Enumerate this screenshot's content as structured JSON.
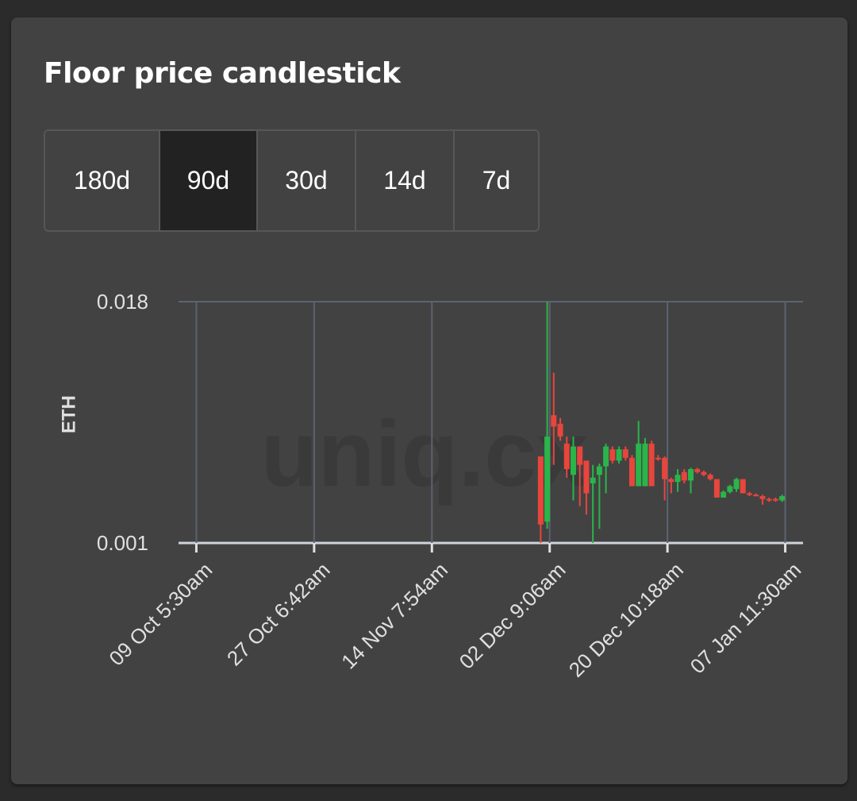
{
  "header": {
    "title": "Floor price candlestick"
  },
  "tabs": [
    "180d",
    "90d",
    "30d",
    "14d",
    "7d"
  ],
  "selected_tab": 1,
  "chart_data": {
    "type": "candlestick",
    "watermark": "uniq.cx",
    "y_label": "ETH",
    "ylim": [
      0.001,
      0.018
    ],
    "yticks": [
      0.001,
      0.018
    ],
    "xlim": [
      "06 Oct 12:00pm",
      "10 Jan 5:00am"
    ],
    "xticks": [
      "09 Oct 5:30am",
      "27 Oct 6:42am",
      "14 Nov 7:54am",
      "02 Dec 9:06am",
      "20 Dec 10:18am",
      "07 Jan 11:30am"
    ],
    "grid": true,
    "up_color": "#2bb44a",
    "down_color": "#e8453c",
    "x": [
      "01 Dec",
      "02 Dec",
      "03 Dec",
      "04 Dec",
      "05 Dec",
      "06 Dec",
      "07 Dec",
      "08 Dec",
      "09 Dec",
      "10 Dec",
      "11 Dec",
      "12 Dec",
      "13 Dec",
      "14 Dec",
      "15 Dec",
      "16 Dec",
      "17 Dec",
      "18 Dec",
      "19 Dec",
      "20 Dec",
      "21 Dec",
      "22 Dec",
      "23 Dec",
      "24 Dec",
      "25 Dec",
      "26 Dec",
      "27 Dec",
      "28 Dec",
      "29 Dec",
      "30 Dec",
      "31 Dec",
      "01 Jan",
      "02 Jan",
      "03 Jan",
      "04 Jan",
      "05 Jan",
      "06 Jan",
      "07 Jan"
    ],
    "open": [
      0.0071,
      0.0025,
      0.01,
      0.0094,
      0.008,
      0.0058,
      0.0078,
      0.0068,
      0.0052,
      0.0058,
      0.0064,
      0.0076,
      0.0068,
      0.0076,
      0.007,
      0.005,
      0.005,
      0.008,
      0.007,
      0.007,
      0.0055,
      0.0053,
      0.006,
      0.0054,
      0.0062,
      0.006,
      0.0058,
      0.0055,
      0.0042,
      0.0046,
      0.0048,
      0.0055,
      0.0045,
      0.0044,
      0.0043,
      0.0041,
      0.0041,
      0.004
    ],
    "high": [
      0.0071,
      0.018,
      0.013,
      0.0098,
      0.0085,
      0.0085,
      0.0078,
      0.0068,
      0.0065,
      0.0066,
      0.008,
      0.0078,
      0.0078,
      0.0078,
      0.0072,
      0.0096,
      0.0084,
      0.0082,
      0.0072,
      0.0071,
      0.0056,
      0.0062,
      0.0062,
      0.0063,
      0.0063,
      0.0061,
      0.0059,
      0.0055,
      0.0047,
      0.0051,
      0.0056,
      0.0055,
      0.0046,
      0.0045,
      0.0044,
      0.0042,
      0.0042,
      0.0044
    ],
    "low": [
      0.001,
      0.002,
      0.0065,
      0.0082,
      0.0056,
      0.004,
      0.0036,
      0.003,
      0.001,
      0.002,
      0.0045,
      0.0066,
      0.0066,
      0.0068,
      0.005,
      0.005,
      0.005,
      0.005,
      0.0068,
      0.004,
      0.0045,
      0.0046,
      0.0052,
      0.0045,
      0.0059,
      0.0057,
      0.0054,
      0.0042,
      0.0042,
      0.0045,
      0.0046,
      0.0045,
      0.0043,
      0.0043,
      0.0037,
      0.0039,
      0.0039,
      0.0039
    ],
    "close": [
      0.0023,
      0.0085,
      0.0092,
      0.0085,
      0.0062,
      0.0078,
      0.0065,
      0.0045,
      0.0056,
      0.0064,
      0.0078,
      0.0068,
      0.0076,
      0.007,
      0.005,
      0.008,
      0.008,
      0.005,
      0.0069,
      0.0055,
      0.0053,
      0.0058,
      0.0054,
      0.0062,
      0.006,
      0.0058,
      0.0055,
      0.0042,
      0.0046,
      0.005,
      0.0055,
      0.0045,
      0.0044,
      0.0043,
      0.0041,
      0.004,
      0.004,
      0.0043
    ]
  }
}
